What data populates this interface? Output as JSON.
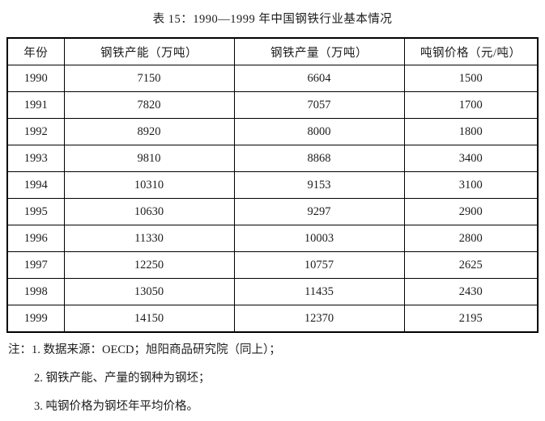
{
  "page": {
    "title": "表 15：1990—1999 年中国钢铁行业基本情况"
  },
  "table": {
    "columns": [
      "年份",
      "钢铁产能（万吨）",
      "钢铁产量（万吨）",
      "吨钢价格（元/吨）"
    ],
    "rows": [
      [
        "1990",
        "7150",
        "6604",
        "1500"
      ],
      [
        "1991",
        "7820",
        "7057",
        "1700"
      ],
      [
        "1992",
        "8920",
        "8000",
        "1800"
      ],
      [
        "1993",
        "9810",
        "8868",
        "3400"
      ],
      [
        "1994",
        "10310",
        "9153",
        "3100"
      ],
      [
        "1995",
        "10630",
        "9297",
        "2900"
      ],
      [
        "1996",
        "11330",
        "10003",
        "2800"
      ],
      [
        "1997",
        "12250",
        "10757",
        "2625"
      ],
      [
        "1998",
        "13050",
        "11435",
        "2430"
      ],
      [
        "1999",
        "14150",
        "12370",
        "2195"
      ]
    ]
  },
  "notes": {
    "prefix": "注：",
    "items": [
      "1. 数据来源：OECD；旭阳商品研究院（同上）；",
      "2. 钢铁产能、产量的钢种为钢坯；",
      "3. 吨钢价格为钢坯年平均价格。"
    ]
  },
  "colors": {
    "text": "#1c1c1c",
    "border": "#000000",
    "background": "#ffffff"
  }
}
